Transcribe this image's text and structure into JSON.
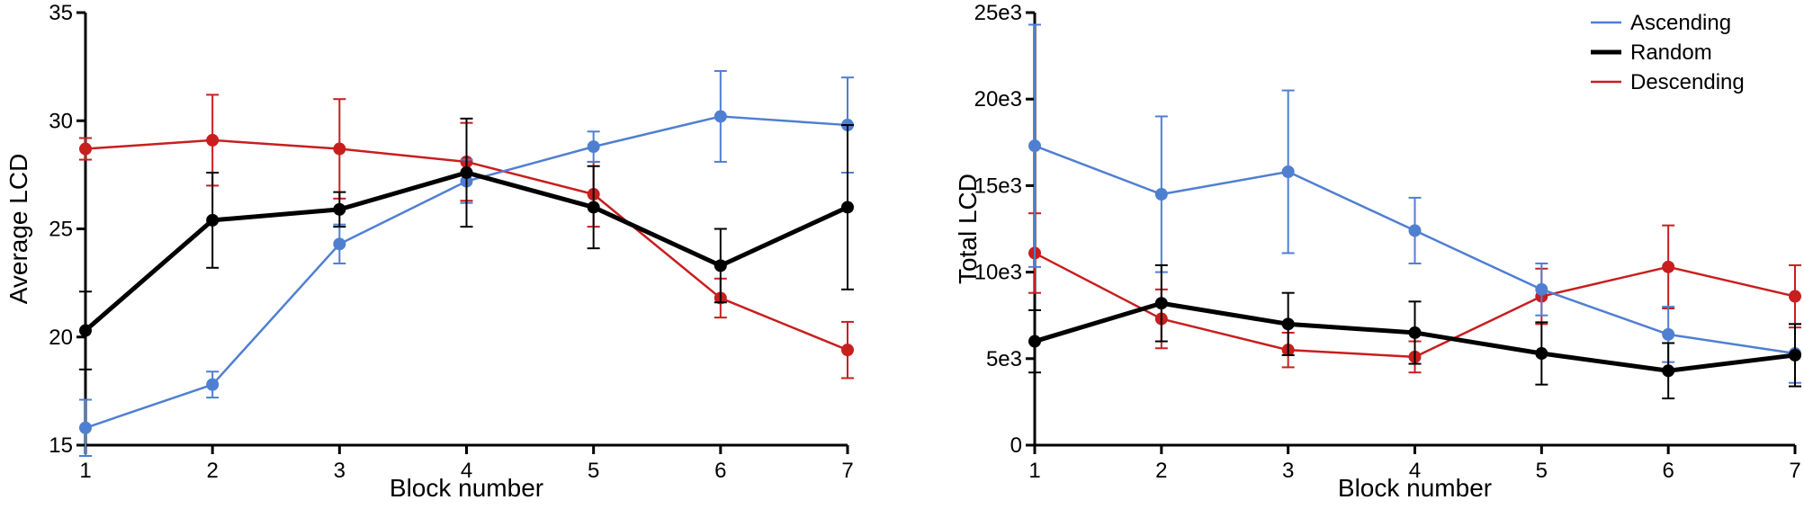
{
  "colors": {
    "ascending": "#4f7fd1",
    "random": "#000000",
    "descending": "#c81e1e"
  },
  "legend": [
    {
      "key": "ascending",
      "label": "Ascending"
    },
    {
      "key": "random",
      "label": "Random"
    },
    {
      "key": "descending",
      "label": "Descending"
    }
  ],
  "chart_data": [
    {
      "type": "line",
      "x": [
        1,
        2,
        3,
        4,
        5,
        6,
        7
      ],
      "xlabel": "Block number",
      "ylabel": "Average LCD",
      "xlim": [
        1,
        7
      ],
      "ylim": [
        15,
        35
      ],
      "yticks": [
        15,
        20,
        25,
        30,
        35
      ],
      "ytick_labels": [
        "15",
        "20",
        "25",
        "30",
        "35"
      ],
      "xtick_labels": [
        "1",
        "2",
        "3",
        "4",
        "5",
        "6",
        "7"
      ],
      "series": [
        {
          "key": "ascending",
          "name": "Ascending",
          "values": [
            15.8,
            17.8,
            24.3,
            27.2,
            28.8,
            30.2,
            29.8
          ],
          "err": [
            1.3,
            0.6,
            0.9,
            1.0,
            0.7,
            2.1,
            2.2
          ]
        },
        {
          "key": "random",
          "name": "Random",
          "values": [
            20.3,
            25.4,
            25.9,
            27.6,
            26.0,
            23.3,
            26.0
          ],
          "err": [
            1.8,
            2.2,
            0.8,
            2.5,
            1.9,
            1.7,
            3.8
          ]
        },
        {
          "key": "descending",
          "name": "Descending",
          "values": [
            28.7,
            29.1,
            28.7,
            28.1,
            26.6,
            21.8,
            19.4
          ],
          "err": [
            0.5,
            2.1,
            2.3,
            1.8,
            1.5,
            0.9,
            1.3
          ]
        }
      ]
    },
    {
      "type": "line",
      "x": [
        1,
        2,
        3,
        4,
        5,
        6,
        7
      ],
      "xlabel": "Block number",
      "ylabel": "Total LCD",
      "xlim": [
        1,
        7
      ],
      "ylim": [
        0,
        25000
      ],
      "yticks": [
        0,
        5000,
        10000,
        15000,
        20000,
        25000
      ],
      "ytick_labels": [
        "0",
        "5e3",
        "10e3",
        "15e3",
        "20e3",
        "25e3"
      ],
      "xtick_labels": [
        "1",
        "2",
        "3",
        "4",
        "5",
        "6",
        "7"
      ],
      "series": [
        {
          "key": "ascending",
          "name": "Ascending",
          "values": [
            17300,
            14500,
            15800,
            12400,
            9000,
            6400,
            5300
          ],
          "err": [
            7000,
            4500,
            4700,
            1900,
            1500,
            1600,
            1700
          ]
        },
        {
          "key": "random",
          "name": "Random",
          "values": [
            6000,
            8200,
            7000,
            6500,
            5300,
            4300,
            5200
          ],
          "err": [
            1800,
            2200,
            1800,
            1800,
            1800,
            1600,
            1800
          ]
        },
        {
          "key": "descending",
          "name": "Descending",
          "values": [
            11100,
            7300,
            5500,
            5100,
            8600,
            10300,
            8600
          ],
          "err": [
            2300,
            1700,
            1000,
            900,
            1600,
            2400,
            1800
          ]
        }
      ]
    }
  ]
}
